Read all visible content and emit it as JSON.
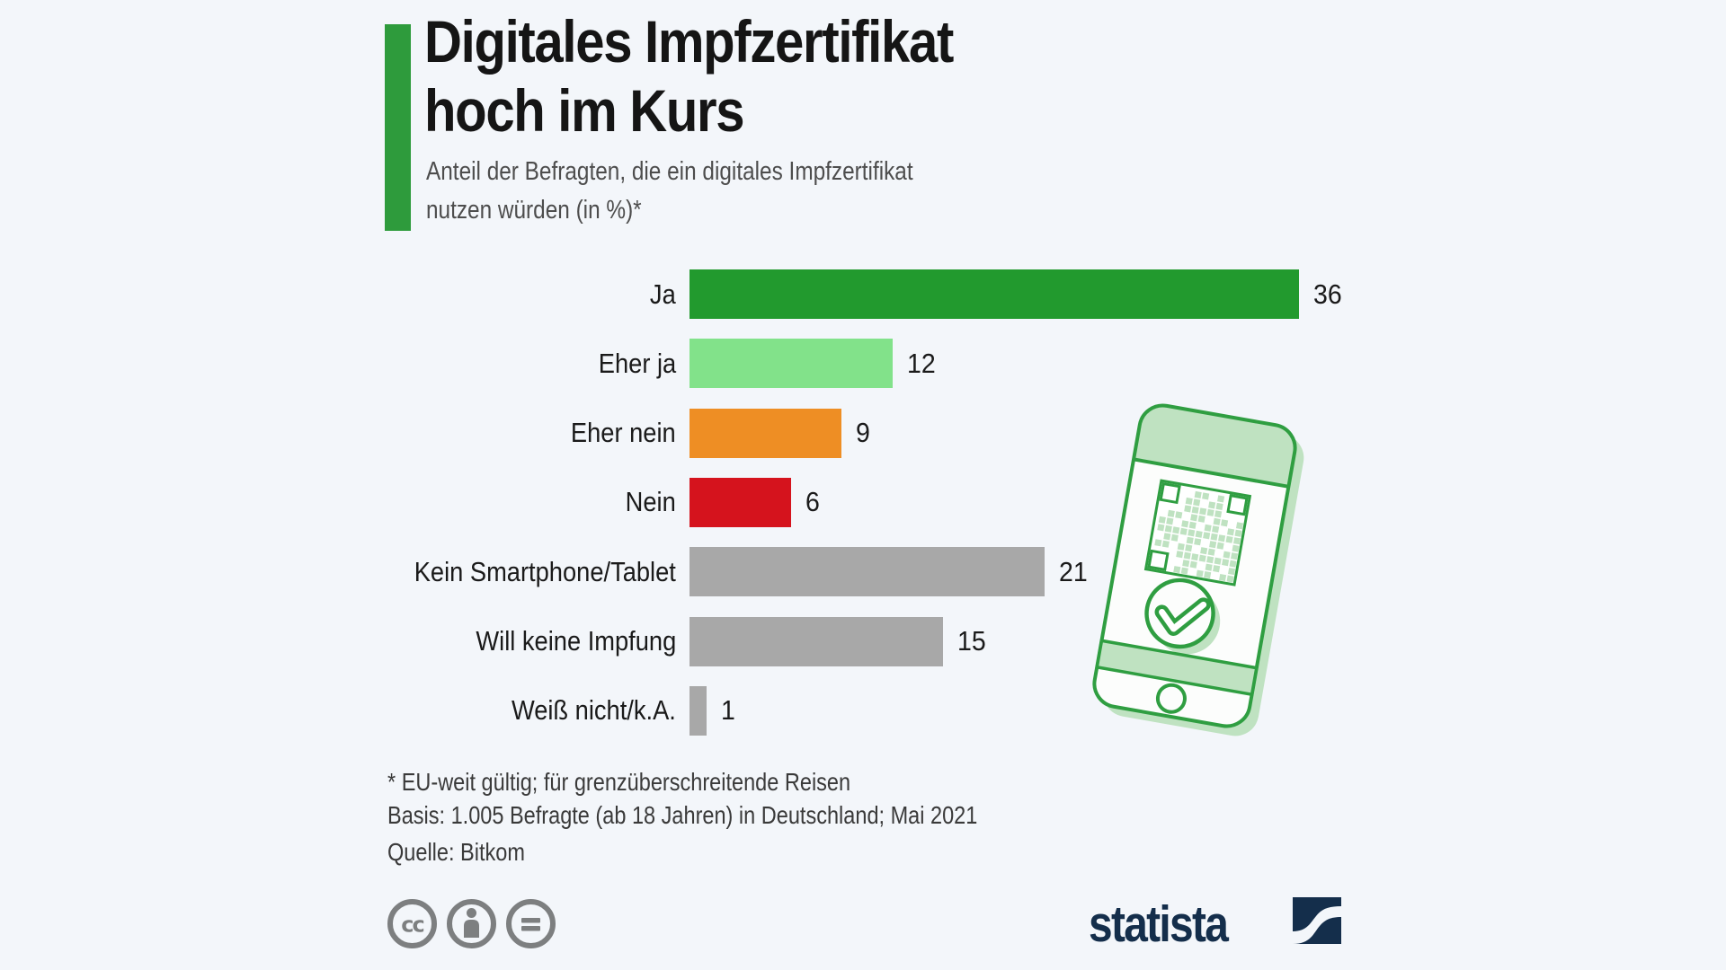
{
  "header": {
    "title_line1": "Digitales Impfzertifikat",
    "title_line2": "hoch im Kurs",
    "subtitle_line1": "Anteil der Befragten, die ein digitales Impfzertifikat",
    "subtitle_line2": "nutzen würden (in %)*"
  },
  "chart_data": {
    "type": "bar",
    "orientation": "horizontal",
    "title": "Digitales Impfzertifikat hoch im Kurs",
    "subtitle": "Anteil der Befragten, die ein digitales Impfzertifikat nutzen würden (in %)*",
    "unit": "percent",
    "xlim": [
      0,
      36
    ],
    "grid": false,
    "value_labels": true,
    "categories": [
      "Ja",
      "Eher ja",
      "Eher nein",
      "Nein",
      "Kein Smartphone/Tablet",
      "Will keine Impfung",
      "Weiß nicht/k.A."
    ],
    "values": [
      36,
      12,
      9,
      6,
      21,
      15,
      1
    ],
    "bar_colors": [
      "#229a2e",
      "#82e28a",
      "#ee8e24",
      "#d5131d",
      "#a8a8a8",
      "#a8a8a8",
      "#a8a8a8"
    ]
  },
  "footer": {
    "footnote_line1": "* EU-weit gültig; für grenzüberschreitende Reisen",
    "footnote_line2": "Basis: 1.005 Befragte (ab 18 Jahren) in Deutschland; Mai 2021",
    "source_line": "Quelle: Bitkom",
    "license_icons": [
      "cc-icon",
      "attribution-person-icon",
      "equals-icon"
    ],
    "brand_wordmark": "statista"
  },
  "illustration": {
    "name": "smartphone-vaccination-certificate",
    "elements": [
      "qr-code",
      "checkmark-badge",
      "home-button"
    ]
  },
  "colors": {
    "background": "#f3f6fa",
    "accent_green": "#2e9b3c",
    "brand_navy": "#142e4b",
    "illustration_green": "#2f9e41",
    "illustration_light_green": "#bfe2c1",
    "license_icon_gray": "#7d7f80",
    "title_text": "#151515",
    "subtitle_text": "#4d4d4d",
    "footnote_text": "#3a3a3a"
  }
}
